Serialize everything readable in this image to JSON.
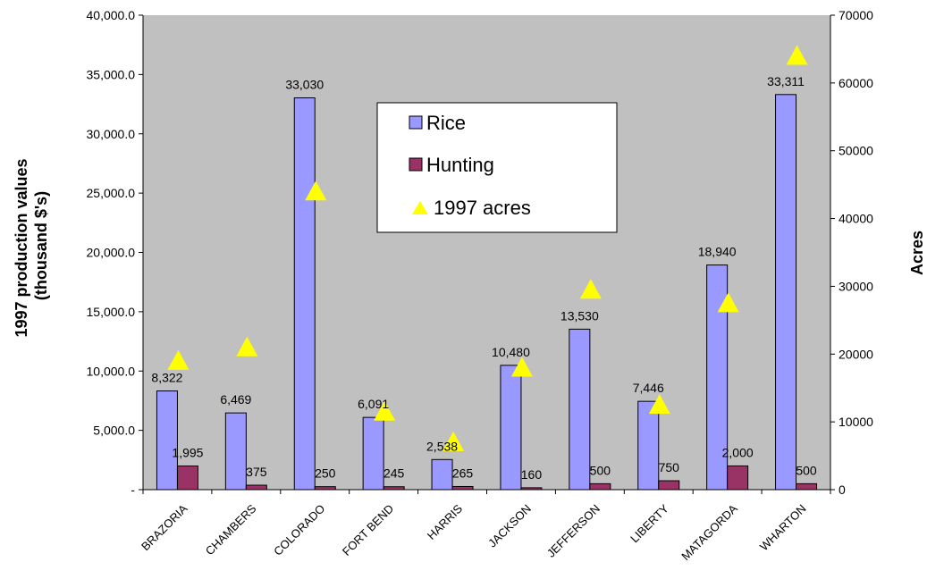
{
  "chart_data": {
    "type": "bar",
    "title": "",
    "categories": [
      "BRAZORIA",
      "CHAMBERS",
      "COLORADO",
      "FORT BEND",
      "HARRIS",
      "JACKSON",
      "JEFFERSON",
      "LIBERTY",
      "MATAGORDA",
      "WHARTON"
    ],
    "series": [
      {
        "name": "Rice",
        "type": "bar",
        "axis": "left",
        "color": "#9999ff",
        "values": [
          8322,
          6469,
          33030,
          6091,
          2538,
          10480,
          13530,
          7446,
          18940,
          33311
        ],
        "labels": [
          "8,322",
          "6,469",
          "33,030",
          "6,091",
          "2,538",
          "10,480",
          "13,530",
          "7,446",
          "18,940",
          "33,311"
        ]
      },
      {
        "name": "Hunting",
        "type": "bar",
        "axis": "left",
        "color": "#993366",
        "values": [
          1995,
          375,
          250,
          245,
          265,
          160,
          500,
          750,
          2000,
          500
        ],
        "labels": [
          "1,995",
          "375",
          "250",
          "245",
          "265",
          "160",
          "500",
          "750",
          "2,000",
          "500"
        ]
      },
      {
        "name": "1997 acres",
        "type": "scatter",
        "marker": "triangle",
        "axis": "right",
        "color": "#ffff00",
        "values": [
          19000,
          21000,
          44000,
          11500,
          7000,
          18000,
          29500,
          12500,
          27500,
          64000
        ]
      }
    ],
    "ylabel": "1997 production values (thousand $'s)",
    "ylabel_lines": [
      "1997 production values",
      "(thousand $'s)"
    ],
    "ylim": [
      0,
      40000
    ],
    "yticks": [
      0,
      5000,
      10000,
      15000,
      20000,
      25000,
      30000,
      35000,
      40000
    ],
    "ytick_labels": [
      "-",
      "5,000.0",
      "10,000.0",
      "15,000.0",
      "20,000.0",
      "25,000.0",
      "30,000.0",
      "35,000.0",
      "40,000.0"
    ],
    "y2label": "Acres",
    "y2lim": [
      0,
      70000
    ],
    "y2ticks": [
      0,
      10000,
      20000,
      30000,
      40000,
      50000,
      60000,
      70000
    ],
    "y2tick_labels": [
      "0",
      "10000",
      "20000",
      "30000",
      "40000",
      "50000",
      "60000",
      "70000"
    ],
    "grid": false,
    "plot_background": "#c0c0c0",
    "legend_position": "top-center"
  }
}
